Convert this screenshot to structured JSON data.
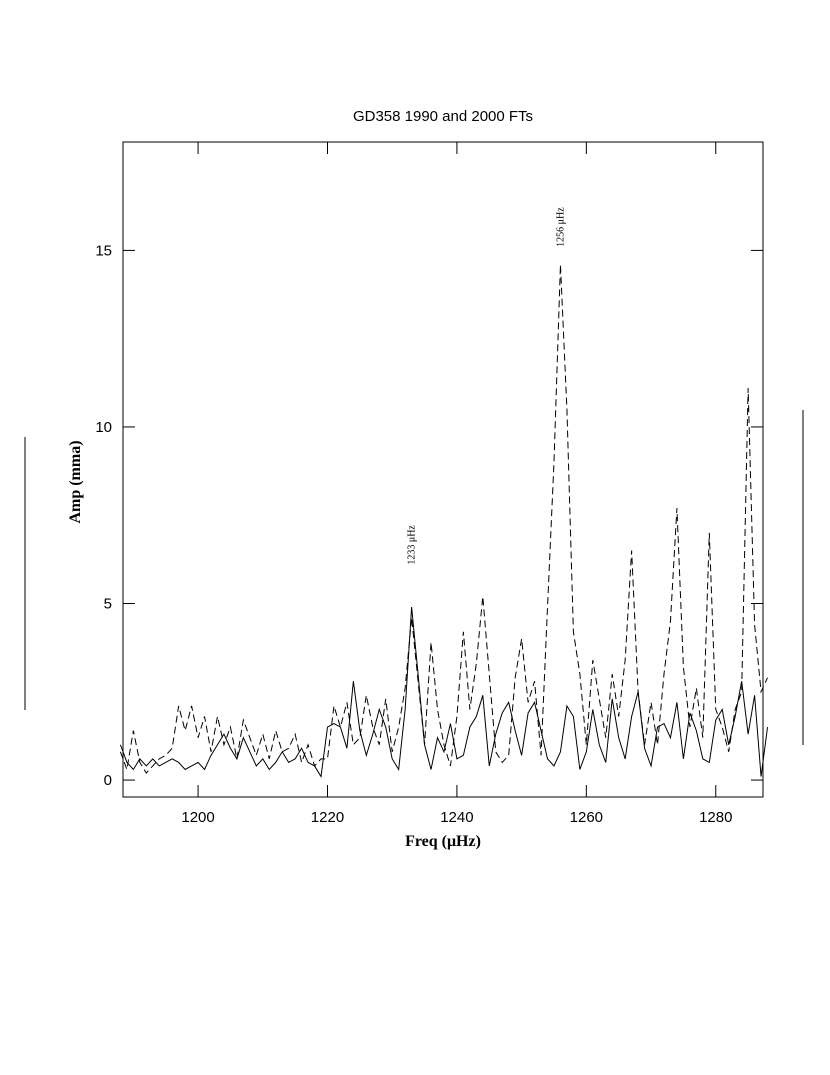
{
  "chart_data": {
    "type": "line",
    "title": "GD358 1990 and 2000 FTs",
    "xlabel": "Freq (μHz)",
    "ylabel": "Amp (mma)",
    "x": [
      1188,
      1189,
      1190,
      1191,
      1192,
      1193,
      1194,
      1195,
      1196,
      1197,
      1198,
      1199,
      1200,
      1201,
      1202,
      1203,
      1204,
      1205,
      1206,
      1207,
      1208,
      1209,
      1210,
      1211,
      1212,
      1213,
      1214,
      1215,
      1216,
      1217,
      1218,
      1219,
      1220,
      1221,
      1222,
      1223,
      1224,
      1225,
      1226,
      1227,
      1228,
      1229,
      1230,
      1231,
      1232,
      1233,
      1234,
      1235,
      1236,
      1237,
      1238,
      1239,
      1240,
      1241,
      1242,
      1243,
      1244,
      1245,
      1246,
      1247,
      1248,
      1249,
      1250,
      1251,
      1252,
      1253,
      1254,
      1255,
      1256,
      1257,
      1258,
      1259,
      1260,
      1261,
      1262,
      1263,
      1264,
      1265,
      1266,
      1267,
      1268,
      1269,
      1270,
      1271,
      1272,
      1273,
      1274,
      1275,
      1276,
      1277,
      1278,
      1279,
      1280,
      1281,
      1282,
      1283,
      1284,
      1285,
      1286,
      1287,
      1288
    ],
    "series": [
      {
        "color": "#000000",
        "dash": false,
        "values": [
          1.0,
          0.5,
          0.3,
          0.6,
          0.4,
          0.6,
          0.4,
          0.5,
          0.6,
          0.5,
          0.3,
          0.4,
          0.5,
          0.3,
          0.7,
          1.0,
          1.3,
          0.9,
          0.6,
          1.2,
          0.8,
          0.4,
          0.6,
          0.3,
          0.5,
          0.8,
          0.5,
          0.6,
          0.9,
          0.5,
          0.4,
          0.1,
          1.5,
          1.6,
          1.5,
          0.9,
          2.8,
          1.4,
          0.7,
          1.3,
          2.0,
          1.5,
          0.6,
          0.3,
          2.0,
          4.9,
          3.0,
          1.0,
          0.3,
          1.2,
          0.8,
          1.6,
          0.6,
          0.7,
          1.5,
          1.8,
          2.4,
          0.4,
          1.3,
          1.9,
          2.2,
          1.4,
          0.7,
          1.9,
          2.2,
          1.4,
          0.6,
          0.4,
          0.8,
          2.1,
          1.8,
          0.3,
          0.8,
          2.0,
          1.0,
          0.5,
          2.3,
          1.2,
          0.6,
          1.8,
          2.5,
          0.9,
          0.4,
          1.5,
          1.6,
          1.2,
          2.2,
          0.6,
          1.9,
          1.4,
          0.6,
          0.5,
          1.7,
          2.0,
          1.0,
          1.8,
          2.8,
          1.3,
          2.4,
          0.1,
          1.5
        ]
      },
      {
        "color": "#000000",
        "dash": true,
        "values": [
          0.8,
          0.3,
          1.4,
          0.5,
          0.2,
          0.4,
          0.6,
          0.7,
          0.9,
          2.1,
          1.4,
          2.1,
          1.2,
          1.8,
          0.8,
          1.8,
          1.0,
          1.5,
          0.6,
          1.7,
          1.2,
          0.7,
          1.3,
          0.6,
          1.4,
          0.8,
          0.9,
          1.3,
          0.5,
          1.0,
          0.4,
          0.6,
          0.6,
          2.1,
          1.5,
          2.2,
          1.0,
          1.2,
          2.4,
          1.5,
          1.0,
          2.3,
          0.8,
          1.5,
          2.6,
          4.6,
          2.8,
          1.0,
          3.9,
          2.0,
          1.0,
          0.4,
          1.8,
          4.2,
          2.0,
          3.3,
          5.2,
          3.0,
          0.8,
          0.5,
          0.7,
          2.9,
          4.0,
          2.2,
          2.8,
          0.7,
          4.9,
          9.0,
          14.6,
          10.5,
          4.2,
          3.0,
          1.0,
          3.4,
          2.3,
          1.2,
          3.0,
          1.8,
          3.4,
          6.5,
          2.5,
          1.0,
          2.2,
          1.0,
          3.0,
          4.5,
          7.7,
          3.2,
          1.5,
          2.6,
          1.2,
          7.0,
          2.0,
          1.5,
          0.8,
          2.0,
          2.5,
          11.1,
          4.4,
          2.5,
          2.9
        ]
      }
    ],
    "annotations": [
      {
        "text": "1233 μHz",
        "x": 1233,
        "y": 6.1
      },
      {
        "text": "1256 μHz",
        "x": 1256,
        "y": 15.1
      }
    ],
    "xlim": [
      1188.4,
      1287.3
    ],
    "ylim": [
      -0.48,
      18.07
    ],
    "xticks": [
      1200,
      1220,
      1240,
      1260,
      1280
    ],
    "yticks": [
      0,
      5,
      10,
      15
    ]
  }
}
